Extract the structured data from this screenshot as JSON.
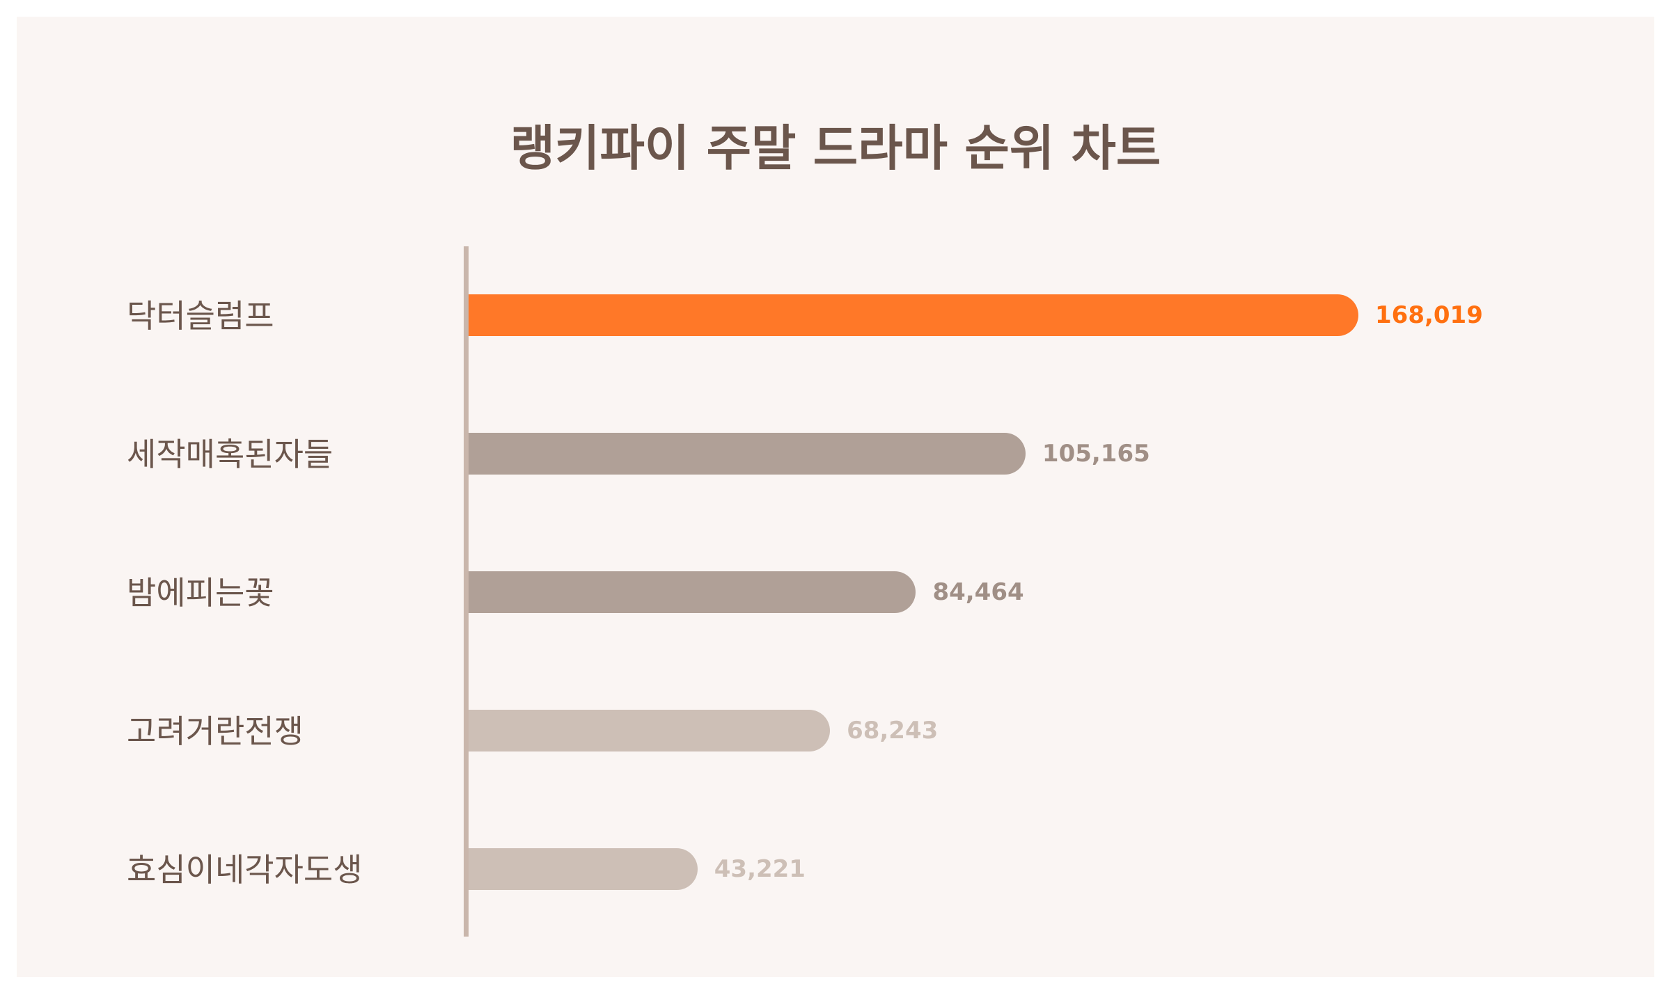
{
  "chart_data": {
    "type": "bar",
    "orientation": "horizontal",
    "title": "랭키파이 주말 드라마 순위 차트",
    "categories": [
      "닥터슬럼프",
      "세작매혹된자들",
      "밤에피는꽃",
      "고려거란전쟁",
      "효심이네각자도생"
    ],
    "values": [
      168019,
      105165,
      84464,
      68243,
      43221
    ],
    "value_labels": [
      "168,019",
      "105,165",
      "84,464",
      "68,243",
      "43,221"
    ],
    "bar_colors": [
      "#ff7828",
      "#b0a097",
      "#b0a097",
      "#cdbfb6",
      "#cdbfb6"
    ],
    "value_label_colors": [
      "#ff7010",
      "#a08f86",
      "#a08f86",
      "#cdbfb6",
      "#cdbfb6"
    ],
    "xlim": [
      0,
      168019
    ],
    "grid": false,
    "legend": "none"
  },
  "colors": {
    "background": "#faf5f3",
    "title": "#6b564c",
    "category_label": "#6b564c",
    "axis": "#c9b6ab"
  }
}
